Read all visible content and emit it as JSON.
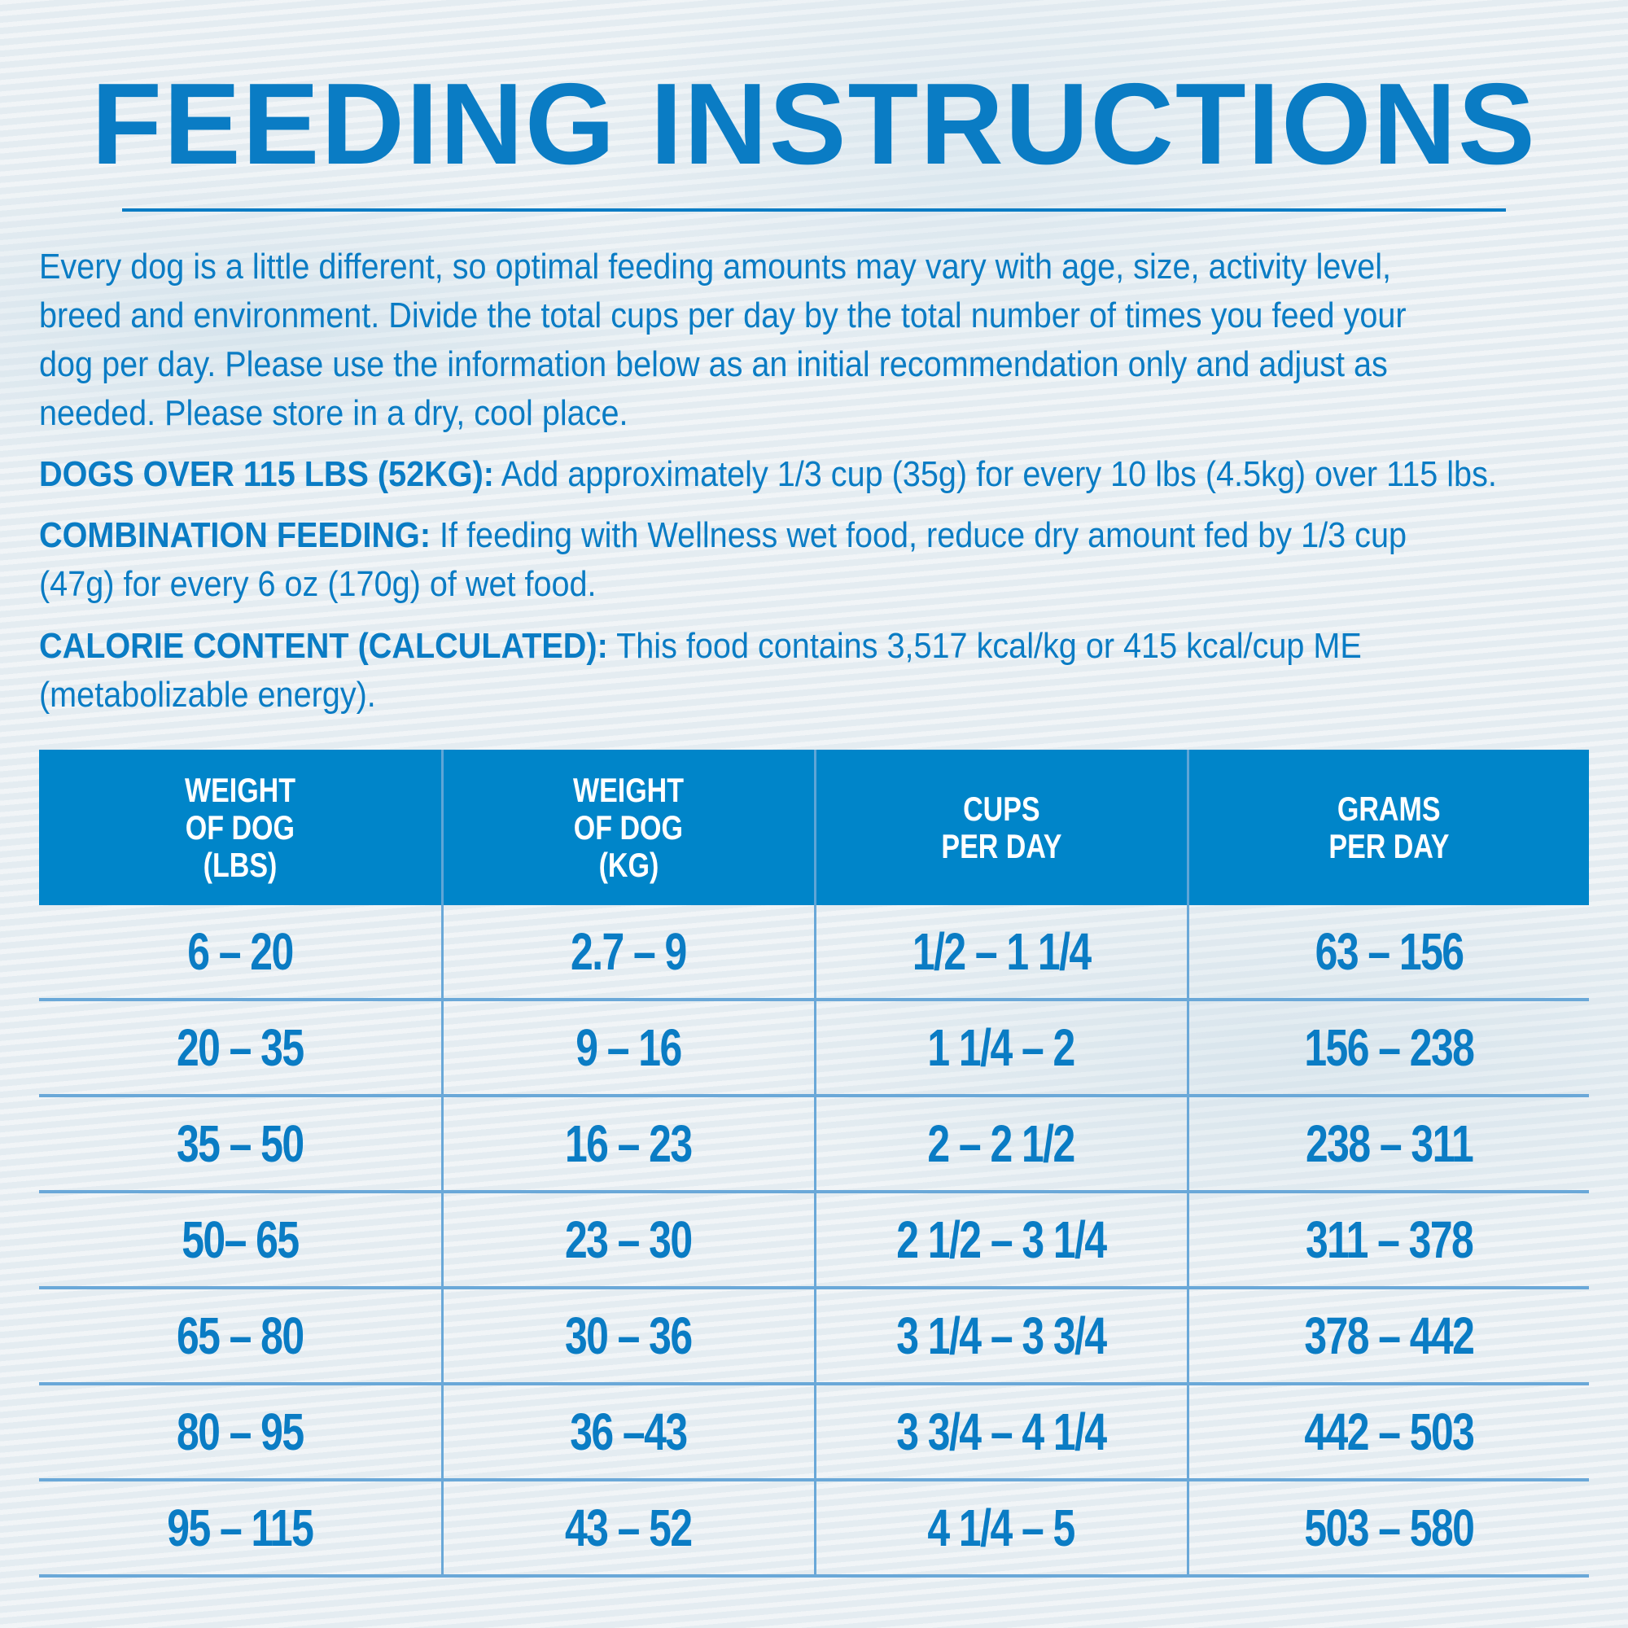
{
  "title": "FEEDING INSTRUCTIONS",
  "intro_lines": [
    "Every dog is a little different, so optimal feeding amounts may vary with age, size, activity level,",
    "breed and environment. Divide the total cups per day by the total number of times you feed your",
    "dog per day. Please use the information below as an initial recommendation only and adjust as",
    "needed. Please store in a dry, cool place."
  ],
  "notes": {
    "over115": {
      "label": "DOGS OVER 115 LBS (52KG):",
      "text": " Add approximately 1/3 cup (35g) for every 10 lbs (4.5kg) over 115 lbs."
    },
    "combination": {
      "label": "COMBINATION FEEDING:",
      "text": " If feeding with Wellness wet food, reduce dry amount fed by 1/3 cup",
      "text2": "(47g) for every 6 oz (170g) of wet food."
    },
    "calorie": {
      "label": "CALORIE CONTENT (CALCULATED):",
      "text": " This food contains 3,517 kcal/kg or 415 kcal/cup ME",
      "text2": "(metabolizable energy)."
    }
  },
  "table": {
    "headers": [
      [
        "WEIGHT",
        "OF DOG",
        "(LBS)"
      ],
      [
        "WEIGHT",
        "OF DOG",
        "(KG)"
      ],
      [
        "CUPS",
        "PER DAY"
      ],
      [
        "GRAMS",
        "PER DAY"
      ]
    ],
    "rows": [
      [
        "6 – 20",
        "2.7 – 9",
        "1/2 – 1 1/4",
        "63 – 156"
      ],
      [
        "20 – 35",
        "9 – 16",
        "1 1/4 – 2",
        "156 – 238"
      ],
      [
        "35 – 50",
        "16 – 23",
        "2 – 2 1/2",
        "238 – 311"
      ],
      [
        "50– 65",
        "23 – 30",
        "2 1/2 – 3 1/4",
        "311 – 378"
      ],
      [
        "65 – 80",
        "30 – 36",
        "3 1/4 – 3 3/4",
        "378 – 442"
      ],
      [
        "80 – 95",
        "36 –43",
        "3 3/4 – 4 1/4",
        "442 – 503"
      ],
      [
        "95 – 115",
        "43 – 52",
        "4 1/4 – 5",
        "503 – 580"
      ]
    ]
  },
  "colors": {
    "brand_blue": "#0a7cc4",
    "header_bg": "#0085c9",
    "grid_line": "#6aa8d8"
  }
}
